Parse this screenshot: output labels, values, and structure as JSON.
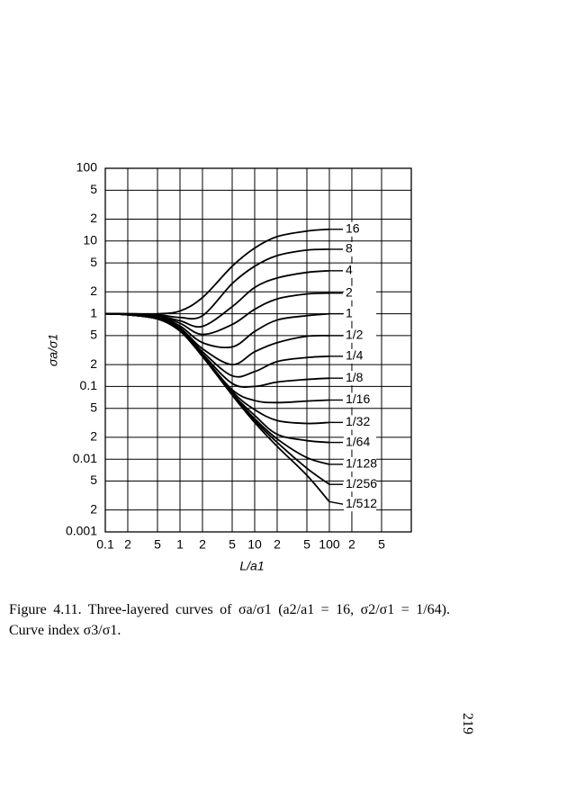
{
  "chart_data": {
    "type": "line",
    "x_label": "L/a1",
    "y_label": "σa/σ1",
    "xscale": "log",
    "yscale": "log",
    "grid": true,
    "color": "#000000",
    "x": [
      0.1,
      0.2,
      0.5,
      1,
      2,
      5,
      10,
      20,
      50,
      100
    ],
    "xlim": [
      0.1,
      1250
    ],
    "ylim": [
      0.001,
      100
    ],
    "xticks": [
      0.1,
      {
        "value": 0.2,
        "label": "2"
      },
      {
        "value": 0.5,
        "label": "5"
      },
      1,
      {
        "value": 2,
        "label": "2"
      },
      {
        "value": 5,
        "label": "5"
      },
      10,
      {
        "value": 20,
        "label": "2"
      },
      {
        "value": 50,
        "label": "5"
      },
      100,
      {
        "value": 200,
        "label": "2"
      },
      {
        "value": 500,
        "label": "5"
      }
    ],
    "yticks": [
      100,
      {
        "value": 50,
        "label": "5"
      },
      {
        "value": 20,
        "label": "2"
      },
      10,
      5,
      2,
      1,
      {
        "value": 0.5,
        "label": "5"
      },
      {
        "value": 0.2,
        "label": "2"
      },
      0.1,
      {
        "value": 0.05,
        "label": "5"
      },
      {
        "value": 0.02,
        "label": "2"
      },
      0.01,
      {
        "value": 0.005,
        "label": "5"
      },
      {
        "value": 0.002,
        "label": "2"
      },
      0.001
    ],
    "series": [
      {
        "name": "16",
        "values": [
          1,
          1,
          1,
          1.09,
          1.67,
          4.5,
          8,
          11.5,
          13.7,
          14.5
        ]
      },
      {
        "name": "8",
        "values": [
          1,
          1,
          0.97,
          0.89,
          0.94,
          2.6,
          4.5,
          6.3,
          7.5,
          7.7
        ]
      },
      {
        "name": "4",
        "values": [
          1,
          0.99,
          0.94,
          0.8,
          0.67,
          1.25,
          2.3,
          3.1,
          3.7,
          3.9
        ]
      },
      {
        "name": "2",
        "values": [
          1,
          0.99,
          0.92,
          0.74,
          0.52,
          0.71,
          1.15,
          1.6,
          1.87,
          1.92
        ]
      },
      {
        "name": "1",
        "values": [
          1,
          0.98,
          0.9,
          0.68,
          0.4,
          0.35,
          0.57,
          0.82,
          0.94,
          1
        ]
      },
      {
        "name": "1/2",
        "values": [
          1,
          0.98,
          0.88,
          0.64,
          0.33,
          0.2,
          0.3,
          0.4,
          0.49,
          0.5
        ]
      },
      {
        "name": "1/4",
        "values": [
          1,
          0.98,
          0.87,
          0.62,
          0.3,
          0.14,
          0.16,
          0.22,
          0.25,
          0.26
        ]
      },
      {
        "name": "1/8",
        "values": [
          1,
          0.97,
          0.86,
          0.6,
          0.28,
          0.11,
          0.1,
          0.115,
          0.125,
          0.13
        ]
      },
      {
        "name": "1/16",
        "values": [
          1,
          0.97,
          0.85,
          0.59,
          0.27,
          0.09,
          0.064,
          0.06,
          0.063,
          0.065
        ]
      },
      {
        "name": "1/32",
        "values": [
          1,
          0.97,
          0.85,
          0.58,
          0.27,
          0.085,
          0.048,
          0.034,
          0.031,
          0.032
        ]
      },
      {
        "name": "1/64",
        "values": [
          1,
          0.97,
          0.85,
          0.58,
          0.26,
          0.08,
          0.04,
          0.022,
          0.018,
          0.017
        ]
      },
      {
        "name": "1/128",
        "values": [
          1,
          0.97,
          0.85,
          0.58,
          0.26,
          0.078,
          0.036,
          0.019,
          0.0105,
          0.0085
        ]
      },
      {
        "name": "1/256",
        "values": [
          1,
          0.97,
          0.85,
          0.58,
          0.26,
          0.077,
          0.034,
          0.017,
          0.0075,
          0.0045
        ]
      },
      {
        "name": "1/512",
        "values": [
          1,
          0.97,
          0.85,
          0.58,
          0.26,
          0.076,
          0.032,
          0.015,
          0.006,
          0.0026
        ]
      }
    ]
  },
  "caption": "Figure 4.11. Three-layered curves of σa/σ1 (a2/a1 = 16, σ2/σ1 = 1/64). Curve index σ3/σ1.",
  "page_number": "219"
}
